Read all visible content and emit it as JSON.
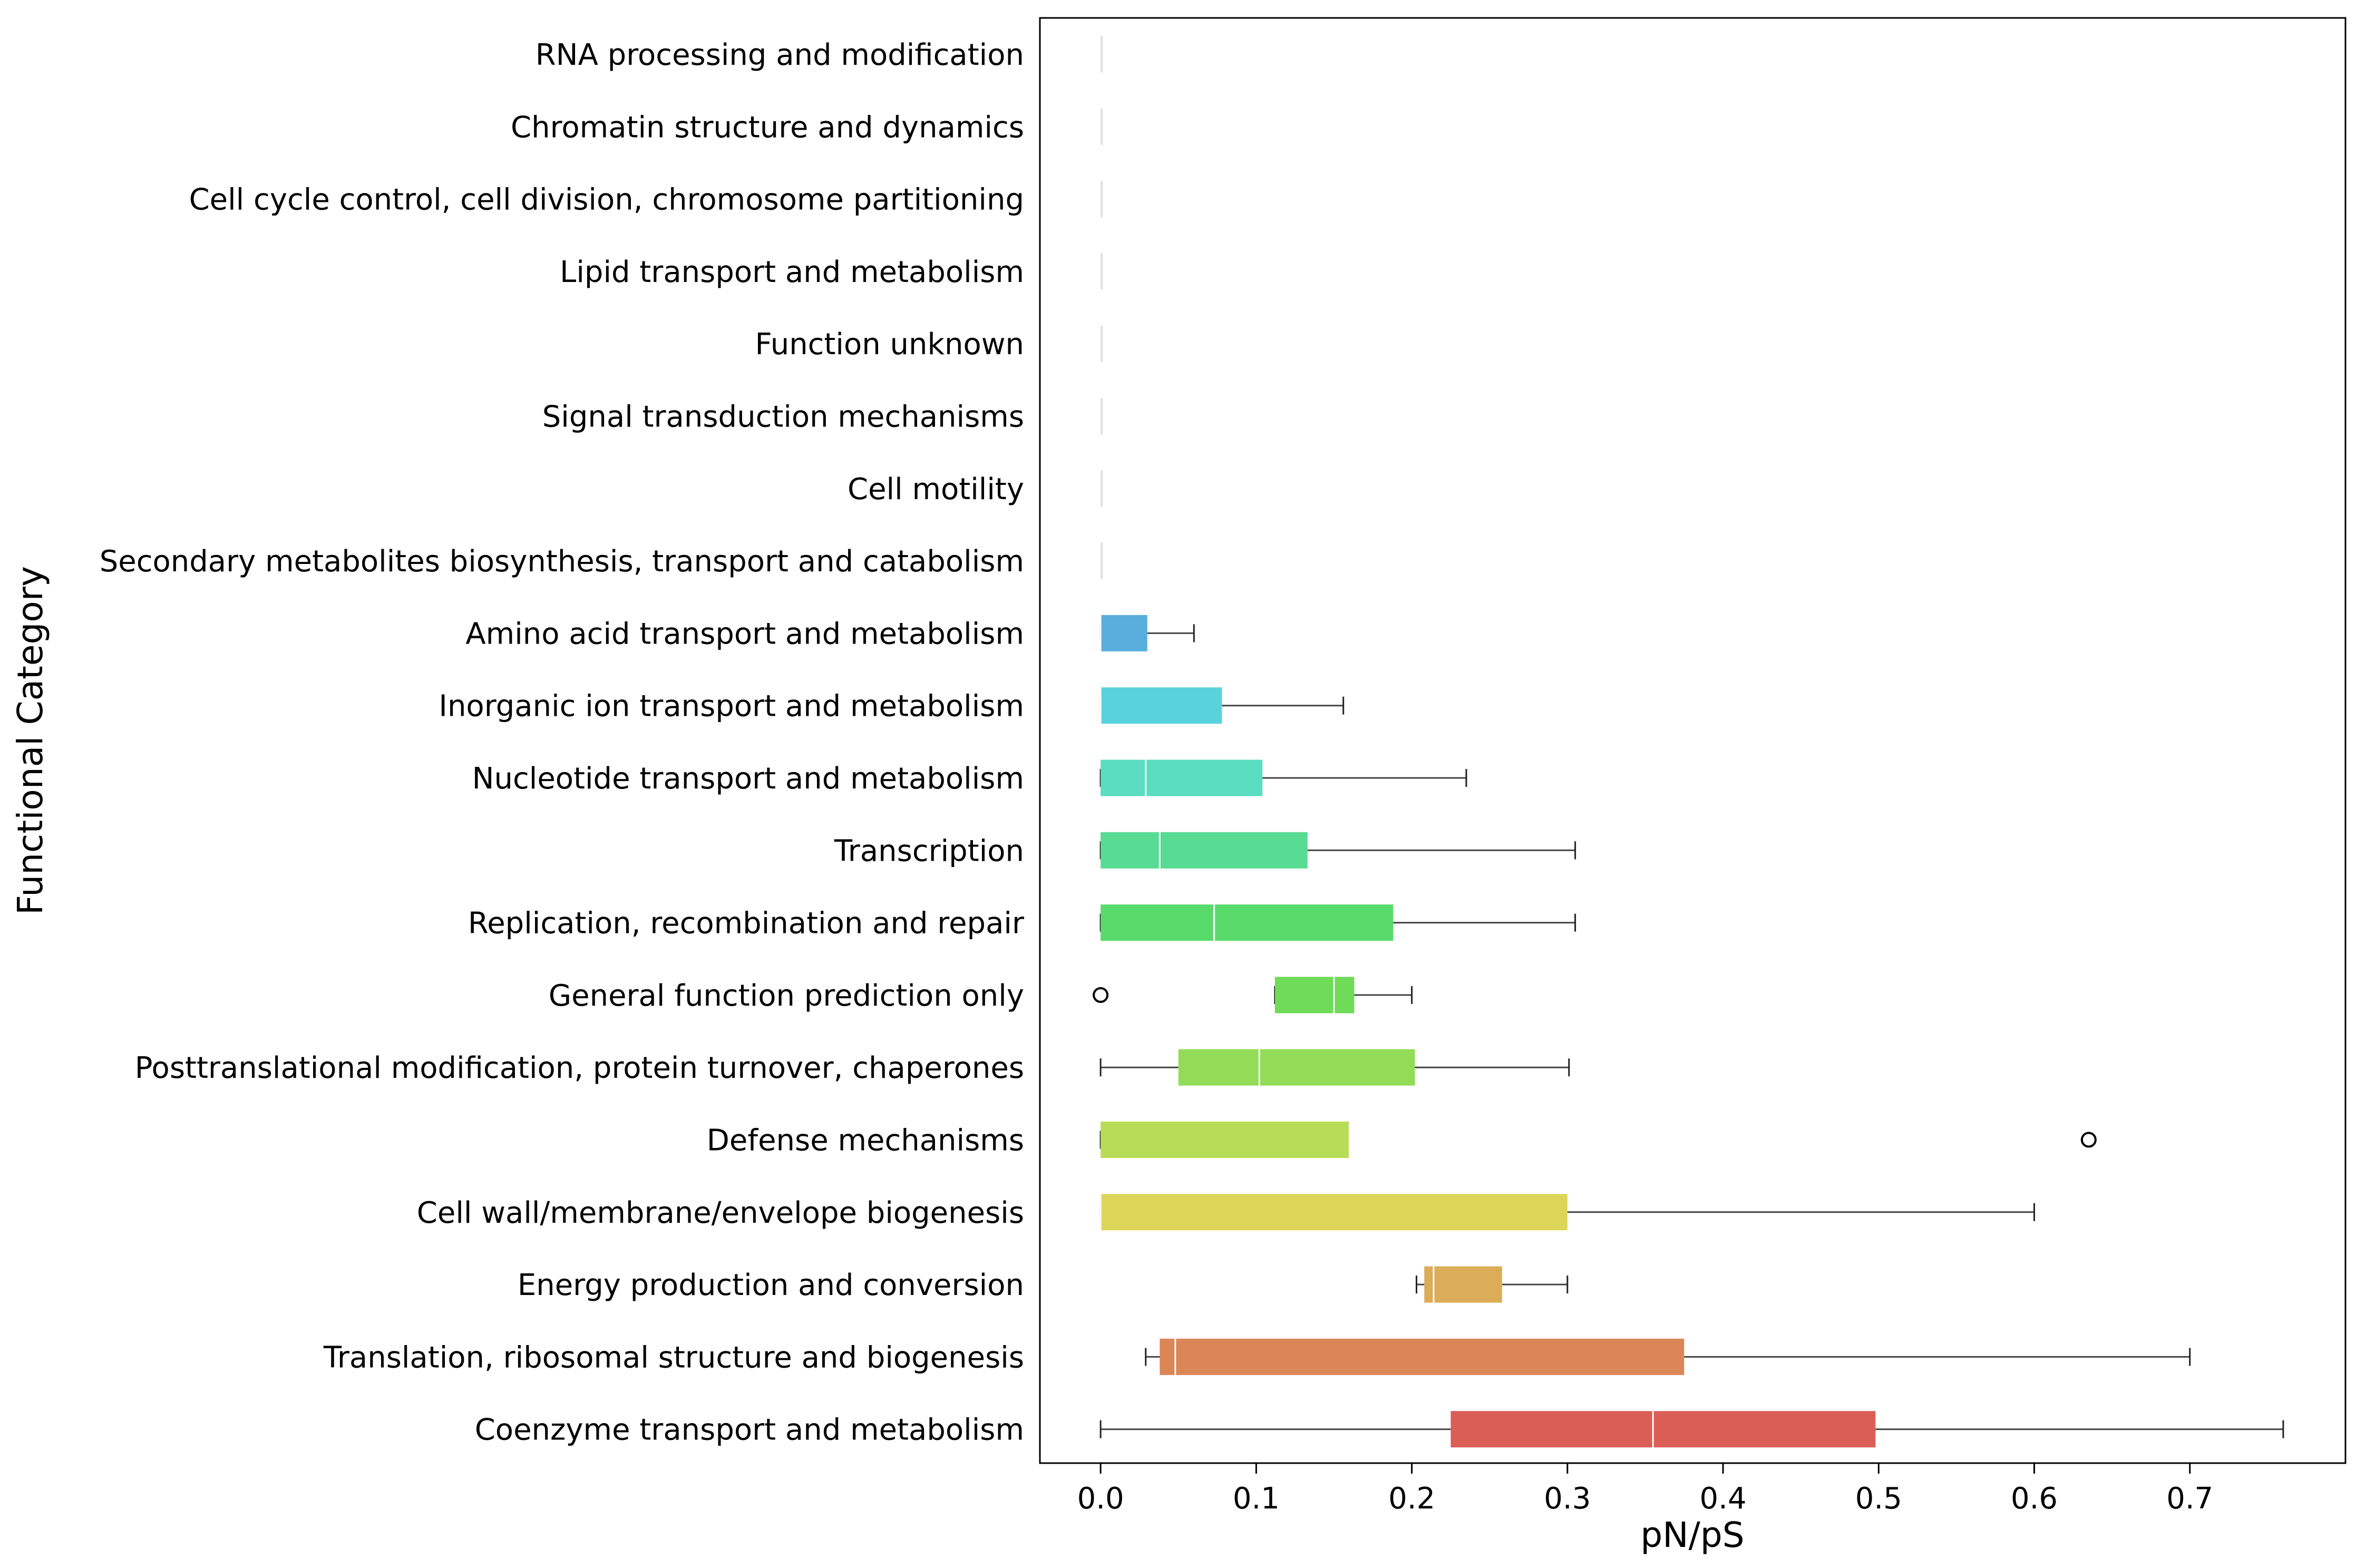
{
  "chart_data": {
    "type": "boxplot",
    "orientation": "horizontal",
    "title": "",
    "xlabel": "pN/pS",
    "ylabel": "Functional Category",
    "xlim": [
      -0.039,
      0.8
    ],
    "xticks": [
      0.0,
      0.1,
      0.2,
      0.3,
      0.4,
      0.5,
      0.6,
      0.7
    ],
    "xtick_labels": [
      "0.0",
      "0.1",
      "0.2",
      "0.3",
      "0.4",
      "0.5",
      "0.6",
      "0.7"
    ],
    "grid": false,
    "categories": [
      {
        "label": "RNA processing and modification",
        "color": "#e0e0e0",
        "min": 0,
        "q1": 0,
        "median": 0,
        "q3": 0,
        "max": 0,
        "outliers": []
      },
      {
        "label": "Chromatin structure and dynamics",
        "color": "#e0e0e0",
        "min": 0,
        "q1": 0,
        "median": 0,
        "q3": 0,
        "max": 0,
        "outliers": []
      },
      {
        "label": "Cell cycle control, cell division, chromosome partitioning",
        "color": "#e0e0e0",
        "min": 0,
        "q1": 0,
        "median": 0,
        "q3": 0,
        "max": 0,
        "outliers": []
      },
      {
        "label": "Lipid transport and metabolism",
        "color": "#e0e0e0",
        "min": 0,
        "q1": 0,
        "median": 0,
        "q3": 0,
        "max": 0,
        "outliers": []
      },
      {
        "label": "Function unknown",
        "color": "#e0e0e0",
        "min": 0,
        "q1": 0,
        "median": 0,
        "q3": 0,
        "max": 0,
        "outliers": []
      },
      {
        "label": "Signal transduction mechanisms",
        "color": "#e0e0e0",
        "min": 0,
        "q1": 0,
        "median": 0,
        "q3": 0,
        "max": 0,
        "outliers": []
      },
      {
        "label": "Cell motility",
        "color": "#e0e0e0",
        "min": 0,
        "q1": 0,
        "median": 0,
        "q3": 0,
        "max": 0,
        "outliers": []
      },
      {
        "label": "Secondary metabolites biosynthesis, transport and catabolism",
        "color": "#e0e0e0",
        "min": 0,
        "q1": 0,
        "median": 0,
        "q3": 0,
        "max": 0,
        "outliers": []
      },
      {
        "label": "Amino acid transport and metabolism",
        "color": "#58aedd",
        "min": 0,
        "q1": 0,
        "median": 0,
        "q3": 0.03,
        "max": 0.06,
        "outliers": []
      },
      {
        "label": "Inorganic ion transport and metabolism",
        "color": "#58d3db",
        "min": 0,
        "q1": 0,
        "median": 0,
        "q3": 0.078,
        "max": 0.156,
        "outliers": []
      },
      {
        "label": "Nucleotide transport and metabolism",
        "color": "#5addc1",
        "min": 0,
        "q1": 0,
        "median": 0.029,
        "q3": 0.104,
        "max": 0.235,
        "outliers": []
      },
      {
        "label": "Transcription",
        "color": "#58db93",
        "min": 0,
        "q1": 0,
        "median": 0.038,
        "q3": 0.133,
        "max": 0.305,
        "outliers": []
      },
      {
        "label": "Replication, recombination and repair",
        "color": "#58db6b",
        "min": 0,
        "q1": 0,
        "median": 0.073,
        "q3": 0.188,
        "max": 0.305,
        "outliers": []
      },
      {
        "label": "General function prediction only",
        "color": "#6fdb58",
        "min": 0.112,
        "q1": 0.112,
        "median": 0.15,
        "q3": 0.163,
        "max": 0.2,
        "outliers": [
          0.0
        ]
      },
      {
        "label": "Posttranslational modification, protein turnover, chaperones",
        "color": "#93dc58",
        "min": 0,
        "q1": 0.05,
        "median": 0.102,
        "q3": 0.202,
        "max": 0.301,
        "outliers": []
      },
      {
        "label": "Defense mechanisms",
        "color": "#b9dc58",
        "min": 0,
        "q1": 0,
        "median": 0.16,
        "q3": 0.16,
        "max": 0.16,
        "outliers": [
          0.635
        ]
      },
      {
        "label": "Cell wall/membrane/envelope biogenesis",
        "color": "#dcd558",
        "min": 0,
        "q1": 0,
        "median": 0,
        "q3": 0.3,
        "max": 0.6,
        "outliers": []
      },
      {
        "label": "Energy production and conversion",
        "color": "#dcad58",
        "min": 0.203,
        "q1": 0.208,
        "median": 0.214,
        "q3": 0.258,
        "max": 0.3,
        "outliers": []
      },
      {
        "label": "Translation, ribosomal structure and biogenesis",
        "color": "#db8657",
        "min": 0.029,
        "q1": 0.038,
        "median": 0.048,
        "q3": 0.375,
        "max": 0.7,
        "outliers": []
      },
      {
        "label": "Coenzyme transport and metabolism",
        "color": "#db5e56",
        "min": 0,
        "q1": 0.225,
        "median": 0.355,
        "q3": 0.498,
        "max": 0.76,
        "outliers": []
      }
    ]
  }
}
